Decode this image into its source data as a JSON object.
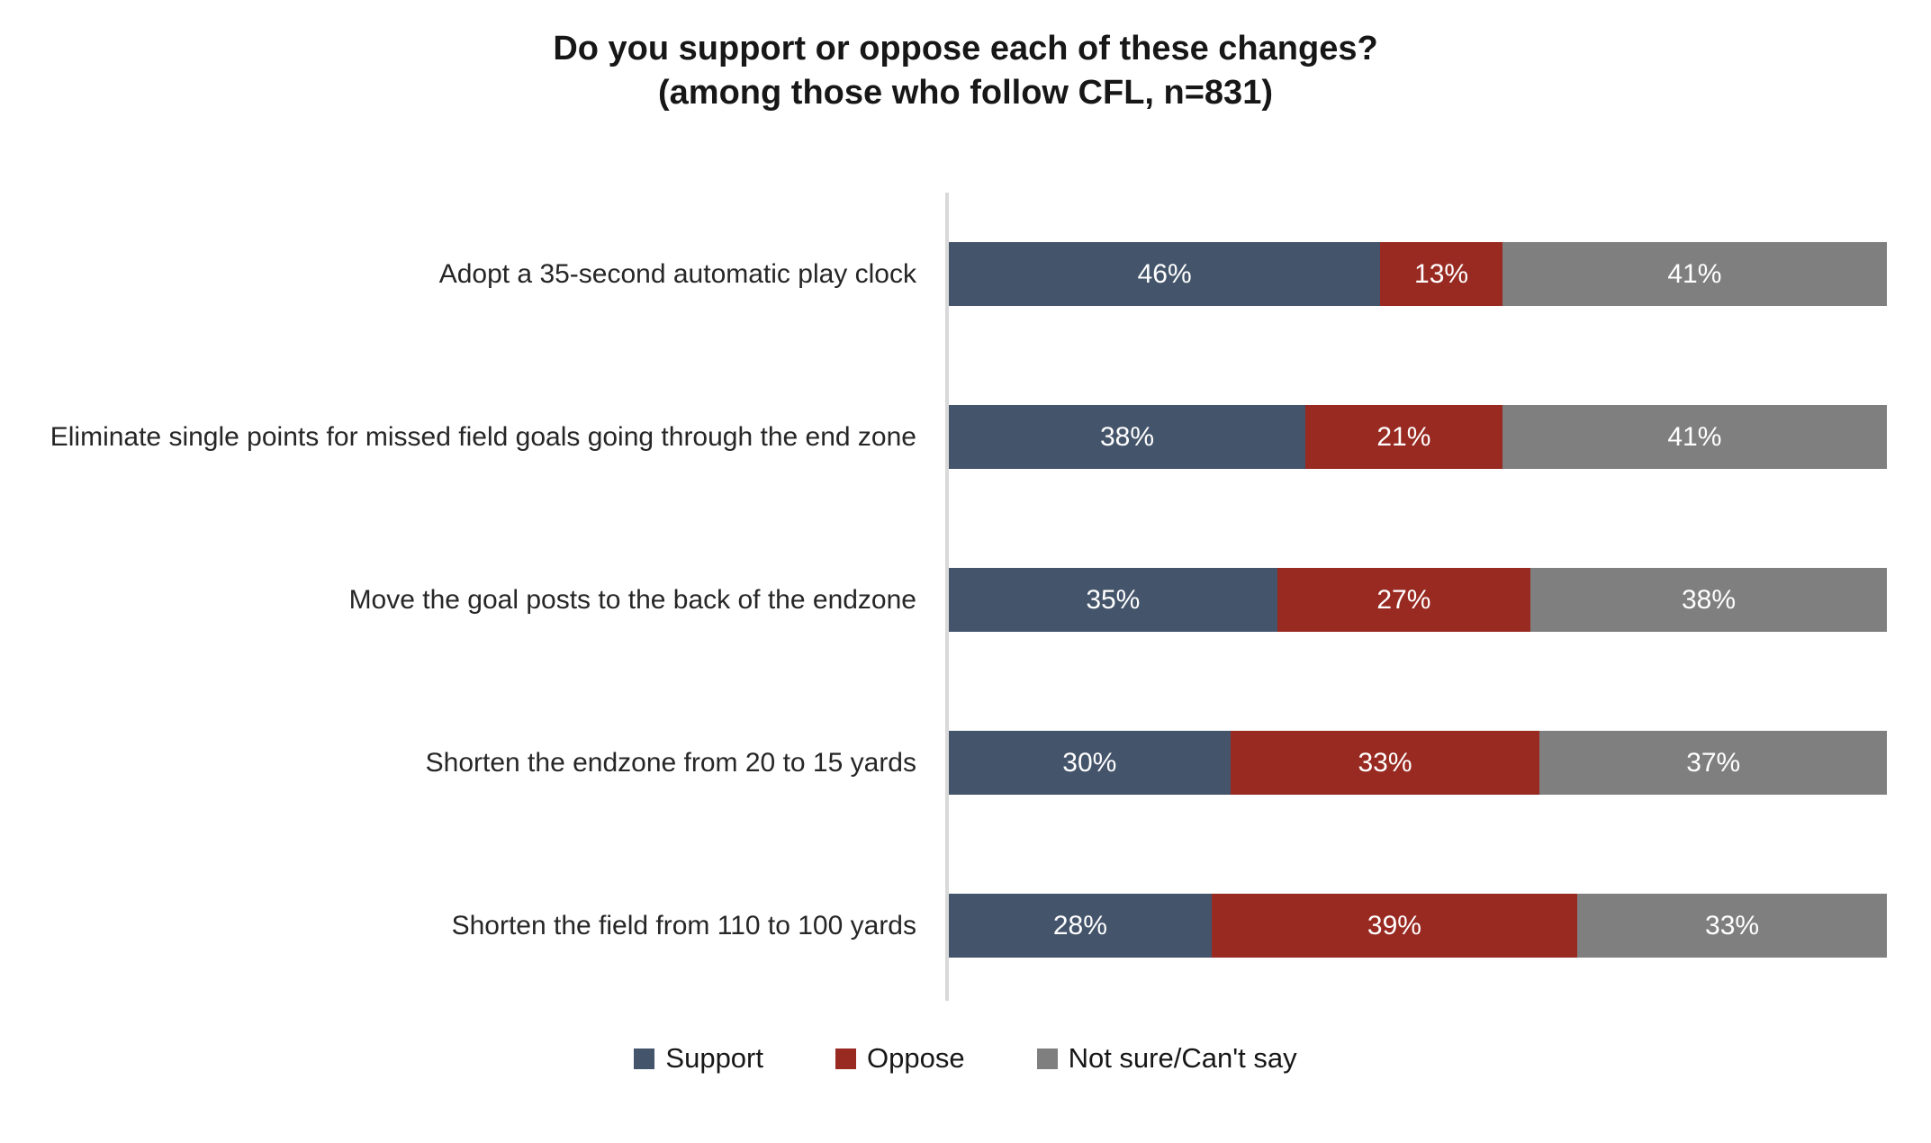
{
  "title": {
    "line1": "Do you support or oppose each of these changes?",
    "line2": "(among those who follow CFL, n=831)"
  },
  "chart_data": {
    "type": "bar",
    "orientation": "horizontal",
    "stacked": true,
    "title": "Do you support or oppose each of these changes? (among those who follow CFL, n=831)",
    "categories": [
      "Adopt a 35-second automatic play clock",
      "Eliminate single points for missed field goals going through the end zone",
      "Move the goal posts to the back of the endzone",
      "Shorten the endzone from 20 to 15 yards",
      "Shorten the field from 110 to 100 yards"
    ],
    "series": [
      {
        "name": "Support",
        "color": "#44546A",
        "values": [
          46,
          38,
          35,
          30,
          28
        ],
        "labels": [
          "46%",
          "38%",
          "35%",
          "30%",
          "28%"
        ]
      },
      {
        "name": "Oppose",
        "color": "#982A22",
        "values": [
          13,
          21,
          27,
          33,
          39
        ],
        "labels": [
          "13%",
          "21%",
          "27%",
          "33%",
          "39%"
        ]
      },
      {
        "name": "Not sure/Can't say",
        "color": "#7F7F7F",
        "values": [
          41,
          41,
          38,
          37,
          33
        ],
        "labels": [
          "41%",
          "41%",
          "38%",
          "37%",
          "33%"
        ]
      }
    ],
    "xlim": [
      0,
      100
    ],
    "value_format": "percent",
    "legend_position": "bottom",
    "grid": false,
    "axis_line_color": "#D9D9D9",
    "background_color": "#FFFFFF",
    "value_text_color": "#FFFFFF"
  }
}
